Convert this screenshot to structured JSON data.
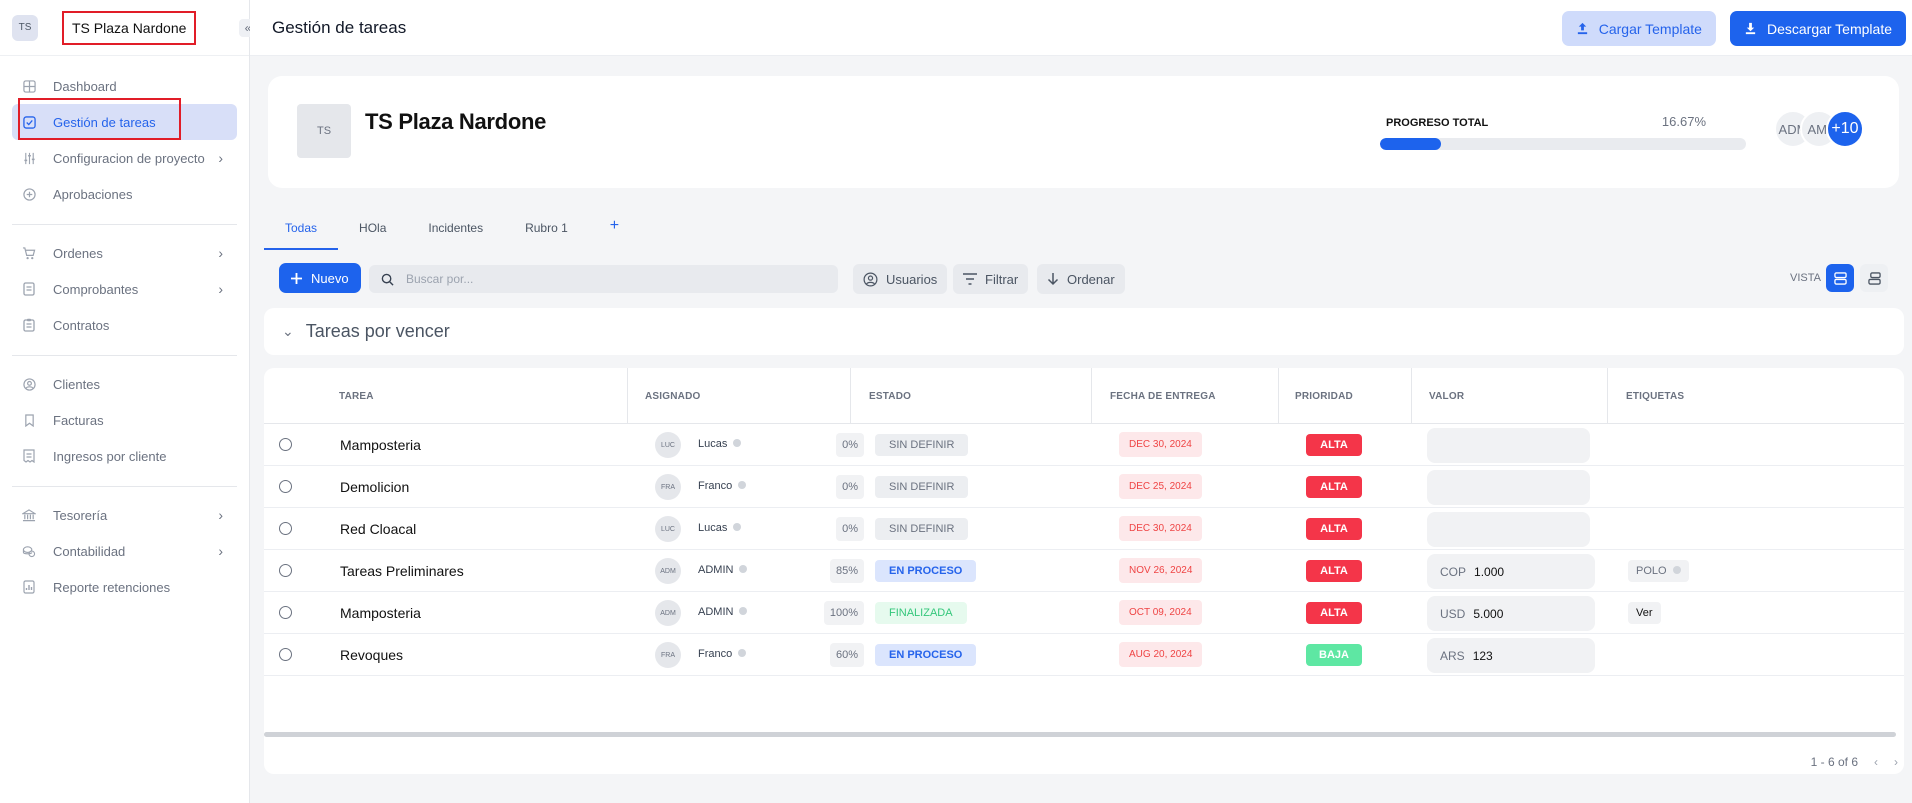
{
  "sidebar": {
    "logo": "TS",
    "project_name": "TS Plaza Nardone",
    "collapse_icon": "double-chevron-left-icon",
    "groups": [
      [
        {
          "label": "Dashboard",
          "icon": "grid-icon",
          "chevron": false
        },
        {
          "label": "Gestión de tareas",
          "icon": "checkbox-icon",
          "chevron": false,
          "active": true
        },
        {
          "label": "Configuracion de proyecto",
          "icon": "sliders-icon",
          "chevron": true
        },
        {
          "label": "Aprobaciones",
          "icon": "plus-circle-icon",
          "chevron": false
        }
      ],
      [
        {
          "label": "Ordenes",
          "icon": "cart-icon",
          "chevron": true
        },
        {
          "label": "Comprobantes",
          "icon": "document-icon",
          "chevron": true
        },
        {
          "label": "Contratos",
          "icon": "clipboard-icon",
          "chevron": false
        }
      ],
      [
        {
          "label": "Clientes",
          "icon": "user-circle-icon",
          "chevron": false
        },
        {
          "label": "Facturas",
          "icon": "bookmark-icon",
          "chevron": false
        },
        {
          "label": "Ingresos por cliente",
          "icon": "receipt-icon",
          "chevron": false
        }
      ],
      [
        {
          "label": "Tesorería",
          "icon": "bank-icon",
          "chevron": true
        },
        {
          "label": "Contabilidad",
          "icon": "coins-icon",
          "chevron": true
        },
        {
          "label": "Reporte retenciones",
          "icon": "report-icon",
          "chevron": false
        }
      ]
    ]
  },
  "header": {
    "title": "Gestión de tareas",
    "upload_label": "Cargar Template",
    "download_label": "Descargar Template"
  },
  "project": {
    "avatar": "TS",
    "name": "TS Plaza Nardone",
    "progress_label": "PROGRESO TOTAL",
    "progress_text": "16.67%",
    "progress_value": 16.67,
    "members": [
      "ADM",
      "AMI"
    ],
    "more_members": "+10"
  },
  "tabs": [
    "Todas",
    "HOla",
    "Incidentes",
    "Rubro 1"
  ],
  "toolbar": {
    "new_label": "Nuevo",
    "search_placeholder": "Buscar por...",
    "users_label": "Usuarios",
    "filter_label": "Filtrar",
    "sort_label": "Ordenar",
    "view_label": "VISTA"
  },
  "section": {
    "title": "Tareas por vencer"
  },
  "table": {
    "columns": [
      "TAREA",
      "ASIGNADO",
      "ESTADO",
      "FECHA DE ENTREGA",
      "PRIORIDAD",
      "VALOR",
      "ETIQUETAS"
    ],
    "rows": [
      {
        "task": "Mamposteria",
        "pct": "0%",
        "av": "LUC",
        "assignee": "Lucas",
        "status": "SIN DEFINIR",
        "status_kind": "sin",
        "date": "DEC 30, 2024",
        "priority": "ALTA",
        "priority_kind": "alta",
        "currency": "",
        "amount": "",
        "tag": "",
        "tag_kind": ""
      },
      {
        "task": "Demolicion",
        "pct": "0%",
        "av": "FRA",
        "assignee": "Franco",
        "status": "SIN DEFINIR",
        "status_kind": "sin",
        "date": "DEC 25, 2024",
        "priority": "ALTA",
        "priority_kind": "alta",
        "currency": "",
        "amount": "",
        "tag": "",
        "tag_kind": ""
      },
      {
        "task": "Red Cloacal",
        "pct": "0%",
        "av": "LUC",
        "assignee": "Lucas",
        "status": "SIN DEFINIR",
        "status_kind": "sin",
        "date": "DEC 30, 2024",
        "priority": "ALTA",
        "priority_kind": "alta",
        "currency": "",
        "amount": "",
        "tag": "",
        "tag_kind": ""
      },
      {
        "task": "Tareas Preliminares",
        "pct": "85%",
        "av": "ADM",
        "assignee": "ADMIN",
        "status": "EN PROCESO",
        "status_kind": "proc",
        "date": "NOV 26, 2024",
        "priority": "ALTA",
        "priority_kind": "alta",
        "currency": "COP",
        "amount": "1.000",
        "tag": "POLO",
        "tag_kind": "chip"
      },
      {
        "task": "Mamposteria",
        "pct": "100%",
        "av": "ADM",
        "assignee": "ADMIN",
        "status": "FINALIZADA",
        "status_kind": "fin",
        "date": "OCT 09, 2024",
        "priority": "ALTA",
        "priority_kind": "alta",
        "currency": "USD",
        "amount": "5.000",
        "tag": "Ver",
        "tag_kind": "plain"
      },
      {
        "task": "Revoques",
        "pct": "60%",
        "av": "FRA",
        "assignee": "Franco",
        "status": "EN PROCESO",
        "status_kind": "proc",
        "date": "AUG 20, 2024",
        "priority": "BAJA",
        "priority_kind": "baja",
        "currency": "ARS",
        "amount": "123",
        "tag": "",
        "tag_kind": ""
      }
    ],
    "pagination": "1 - 6 of 6"
  },
  "colors": {
    "accent": "#1d63ed",
    "highlight_box": "#e11d28",
    "priority_alta": "#f43549",
    "priority_baja": "#5ee7a3"
  }
}
